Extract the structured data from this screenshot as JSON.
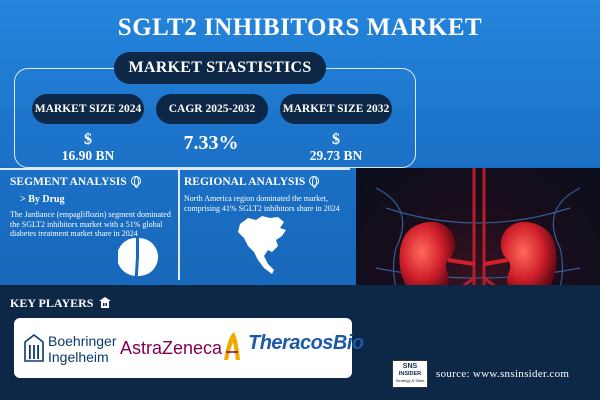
{
  "title": "SGLT2 INHIBITORS MARKET",
  "stats": {
    "heading": "MARKET STASTISTICS",
    "size_2024_label": "MARKET SIZE 2024",
    "cagr_label": "CAGR 2025-2032",
    "size_2032_label": "MARKET SIZE 2032",
    "currency": "$",
    "size_2024_value": "16.90 BN",
    "cagr_value": "7.33%",
    "size_2032_value": "29.73 BN"
  },
  "segment": {
    "heading": "SEGMENT ANALYSIS",
    "sub_heading": "> By Drug",
    "description": "The Jardiance (empagliflozin) segment dominated the SGLT2 inhibitors market with a 51% global diabetes treatment market share in 2024",
    "pie_share": 0.51
  },
  "regional": {
    "heading": "REGIONAL ANALYSIS",
    "description": "North America region dominated the market, comprising 41% SGLT2 inhibitors share in 2024"
  },
  "key_players": {
    "heading": "KEY PLAYERS",
    "boehringer_line1": "Boehringer",
    "boehringer_line2": "Ingelheim",
    "astrazeneca": "AstraZeneca",
    "theracos": "TheracosBio"
  },
  "source": "source: www.snsinsider.com",
  "badge": {
    "line1": "SNS",
    "line2": "INSIDER",
    "line3": "Strategy & Stats"
  },
  "colors": {
    "background": "#1a6fc4",
    "pill": "#0d2847",
    "boehringer": "#0b3b6e",
    "astrazeneca": "#830051",
    "astrazeneca_symbol": "#efab00",
    "theracos": "#1c5aa8"
  }
}
